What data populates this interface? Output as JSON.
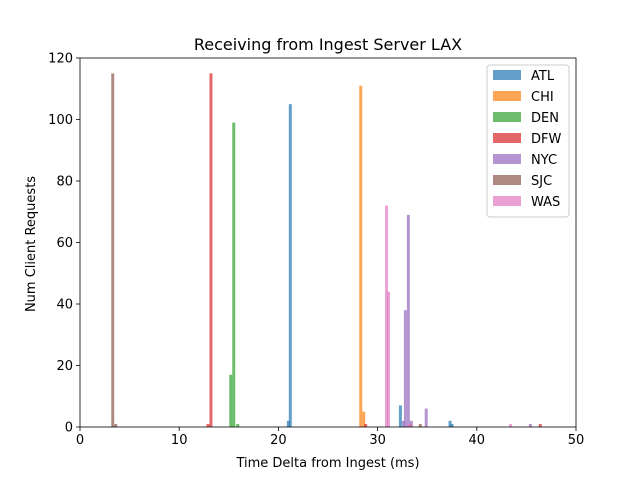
{
  "chart_data": {
    "type": "bar",
    "title": "Receiving from Ingest Server LAX",
    "xlabel": "Time Delta from Ingest (ms)",
    "ylabel": "Num Client Requests",
    "xlim": [
      0,
      50
    ],
    "ylim": [
      0,
      120
    ],
    "xticks": [
      0,
      10,
      20,
      30,
      40,
      50
    ],
    "yticks": [
      0,
      20,
      40,
      60,
      80,
      100,
      120
    ],
    "grid": false,
    "legend_position": "top-right",
    "bin_width": 0.3,
    "series": [
      {
        "name": "ATL",
        "color": "#1f77b4",
        "points": [
          [
            21.0,
            2
          ],
          [
            21.2,
            105
          ],
          [
            32.3,
            7
          ],
          [
            37.3,
            2
          ],
          [
            37.5,
            1
          ]
        ]
      },
      {
        "name": "CHI",
        "color": "#ff7f0e",
        "points": [
          [
            28.3,
            111
          ],
          [
            28.6,
            5
          ],
          [
            33.3,
            1
          ]
        ]
      },
      {
        "name": "DEN",
        "color": "#2ca02c",
        "points": [
          [
            15.2,
            17
          ],
          [
            15.5,
            99
          ],
          [
            15.9,
            1
          ]
        ]
      },
      {
        "name": "DFW",
        "color": "#d62728",
        "points": [
          [
            12.9,
            1
          ],
          [
            13.2,
            115
          ],
          [
            28.8,
            1
          ],
          [
            46.4,
            1
          ]
        ]
      },
      {
        "name": "NYC",
        "color": "#9467bd",
        "points": [
          [
            32.6,
            2
          ],
          [
            32.8,
            38
          ],
          [
            33.1,
            69
          ],
          [
            33.4,
            2
          ],
          [
            34.9,
            6
          ],
          [
            45.4,
            1
          ]
        ]
      },
      {
        "name": "SJC",
        "color": "#8c564b",
        "points": [
          [
            3.3,
            115
          ],
          [
            3.6,
            1
          ],
          [
            34.3,
            1
          ]
        ]
      },
      {
        "name": "WAS",
        "color": "#e377c2",
        "points": [
          [
            30.9,
            72
          ],
          [
            31.1,
            44
          ],
          [
            33.2,
            1
          ],
          [
            43.4,
            1
          ]
        ]
      }
    ]
  }
}
